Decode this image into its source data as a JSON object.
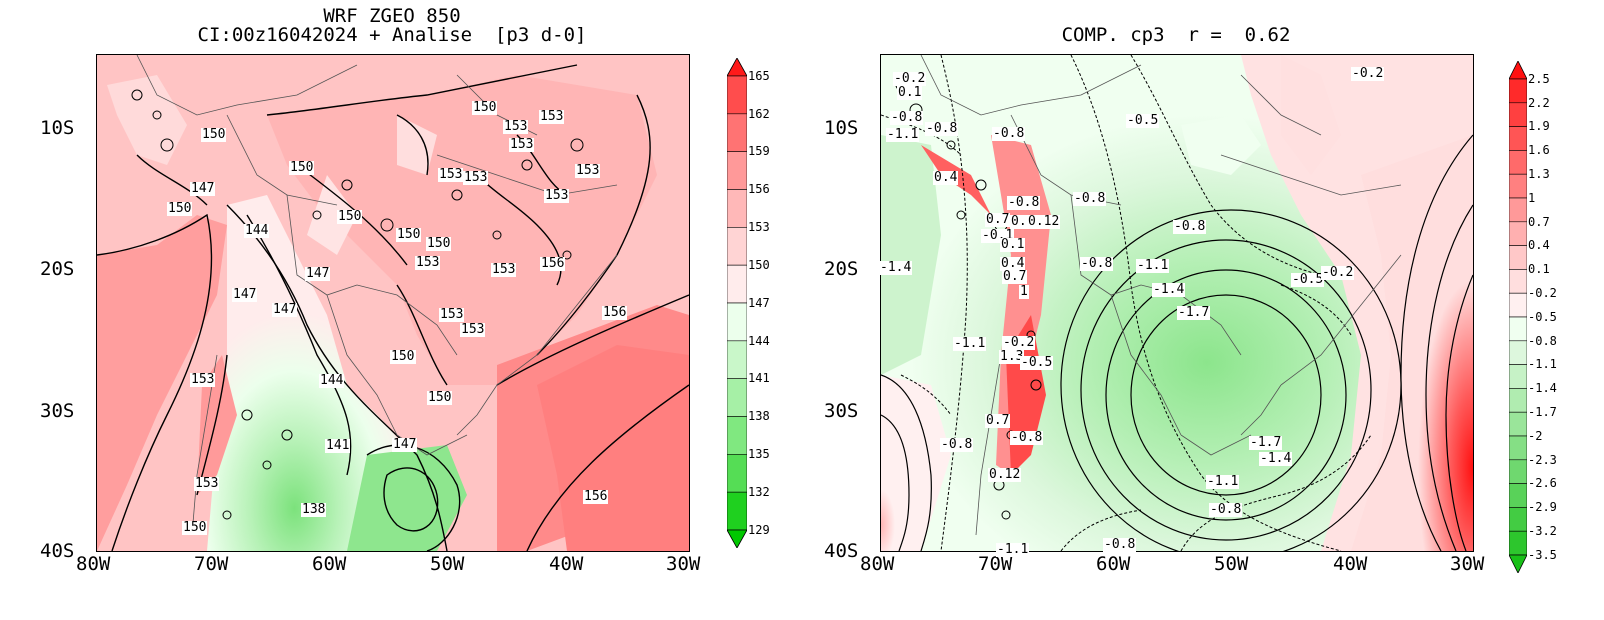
{
  "panels": [
    {
      "title_line1": "WRF ZGEO 850",
      "title_line2": "CI:00z16042024 + Analise  [p3 d-0]",
      "x_ticks": [
        "80W",
        "70W",
        "60W",
        "50W",
        "40W",
        "30W"
      ],
      "y_ticks": [
        "10S",
        "20S",
        "30S",
        "40S"
      ],
      "colorbar_labels": [
        "165",
        "162",
        "159",
        "156",
        "153",
        "150",
        "147",
        "144",
        "141",
        "138",
        "135",
        "132",
        "129"
      ],
      "colorbar_colors": [
        "#ff1a1a",
        "#ff4d4d",
        "#ff7373",
        "#ff9999",
        "#ffb8b8",
        "#ffd4d4",
        "#ffecec",
        "#ecffec",
        "#c9f7c9",
        "#a6f0a6",
        "#80e880",
        "#55dd55",
        "#1fd01f",
        "#00c800"
      ],
      "contour_labels": [
        "150",
        "150",
        "147",
        "150",
        "150",
        "144",
        "147",
        "147",
        "147",
        "153",
        "150",
        "150",
        "150",
        "153",
        "150",
        "153",
        "153",
        "153",
        "153",
        "153",
        "153",
        "153",
        "153",
        "156",
        "153",
        "153",
        "150",
        "150",
        "144",
        "141",
        "147",
        "138",
        "153",
        "150",
        "156",
        "156"
      ]
    },
    {
      "title": "COMP. cp3  r =  0.62",
      "x_ticks": [
        "80W",
        "70W",
        "60W",
        "50W",
        "40W",
        "30W"
      ],
      "y_ticks": [
        "10S",
        "20S",
        "30S",
        "40S"
      ],
      "colorbar_labels": [
        "2.5",
        "2.2",
        "1.9",
        "1.6",
        "1.3",
        "1",
        "0.7",
        "0.4",
        "0.1",
        "-0.2",
        "-0.5",
        "-0.8",
        "-1.1",
        "-1.4",
        "-1.7",
        "-2",
        "-2.3",
        "-2.6",
        "-2.9",
        "-3.2",
        "-3.5"
      ],
      "colorbar_colors": [
        "#ff1010",
        "#ff2a2a",
        "#ff4040",
        "#ff5555",
        "#ff6a6a",
        "#ff8080",
        "#ff9999",
        "#ffb0b0",
        "#ffc8c8",
        "#ffdede",
        "#fff0f0",
        "#f0fff0",
        "#ddf7dd",
        "#c6f2c6",
        "#b0ecb0",
        "#9ae59a",
        "#85df85",
        "#6fd86f",
        "#59d259",
        "#43cc43",
        "#2dc62d",
        "#18c018"
      ],
      "contour_labels": [
        "-0.2",
        "0.1",
        "-0.8",
        "-1.1",
        "-0.8",
        "-0.8",
        "-0.5",
        "-0.2",
        "0.4",
        "-0.8",
        "-0.8",
        "0.7",
        "0.4",
        "0.12",
        "-0.1",
        "-0.8",
        "0.1",
        "0.4",
        "0.7",
        "-0.8",
        "-1.1",
        "-1.4",
        "1",
        "-1.4",
        "-0.5",
        "-0.2",
        "-1.7",
        "-0.2",
        "-1.1",
        "1.3",
        "-0.5",
        "0.7",
        "-0.8",
        "-0.8",
        "-1.7",
        "-1.4",
        "0.12",
        "-1.1",
        "-0.8",
        "-1.1",
        "-0.8"
      ]
    }
  ]
}
